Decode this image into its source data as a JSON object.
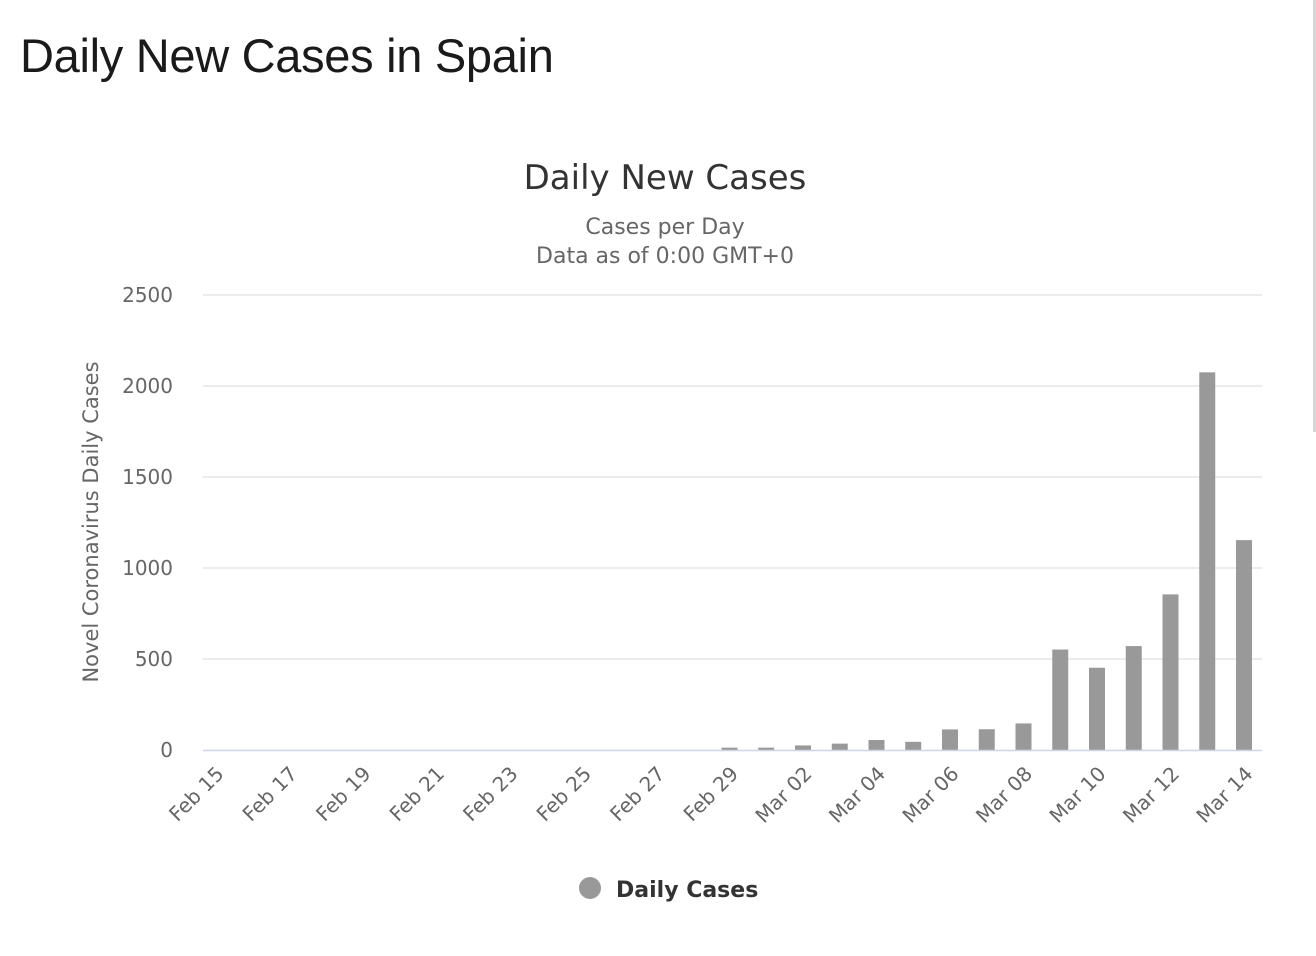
{
  "page": {
    "title": "Daily New Cases in Spain"
  },
  "chart_data": {
    "type": "bar",
    "title": "Daily New Cases",
    "subtitle": [
      "Cases per Day",
      "Data as of 0:00 GMT+0"
    ],
    "xlabel": "",
    "ylabel": "Novel Coronavirus Daily Cases",
    "ylim": [
      0,
      2500
    ],
    "yticks": [
      0,
      500,
      1000,
      1500,
      2000,
      2500
    ],
    "grid": true,
    "legend_position": "bottom-center",
    "bar_color": "#999999",
    "axis_color": "#ccd6eb",
    "grid_color": "#e6e6e6",
    "categories": [
      "Feb 15",
      "Feb 16",
      "Feb 17",
      "Feb 18",
      "Feb 19",
      "Feb 20",
      "Feb 21",
      "Feb 22",
      "Feb 23",
      "Feb 24",
      "Feb 25",
      "Feb 26",
      "Feb 27",
      "Feb 28",
      "Feb 29",
      "Mar 01",
      "Mar 02",
      "Mar 03",
      "Mar 04",
      "Mar 05",
      "Mar 06",
      "Mar 07",
      "Mar 08",
      "Mar 09",
      "Mar 10",
      "Mar 11",
      "Mar 12",
      "Mar 13",
      "Mar 14"
    ],
    "tick_labels": [
      "Feb 15",
      "Feb 17",
      "Feb 19",
      "Feb 21",
      "Feb 23",
      "Feb 25",
      "Feb 27",
      "Feb 29",
      "Mar 02",
      "Mar 04",
      "Mar 06",
      "Mar 08",
      "Mar 10",
      "Mar 12",
      "Mar 14"
    ],
    "series": [
      {
        "name": "Daily Cases",
        "color": "#999999",
        "values": [
          0,
          0,
          0,
          0,
          0,
          0,
          0,
          0,
          0,
          0,
          0,
          0,
          0,
          0,
          13,
          13,
          25,
          35,
          55,
          45,
          113,
          114,
          146,
          552,
          452,
          571,
          855,
          2075,
          1153
        ]
      }
    ]
  }
}
